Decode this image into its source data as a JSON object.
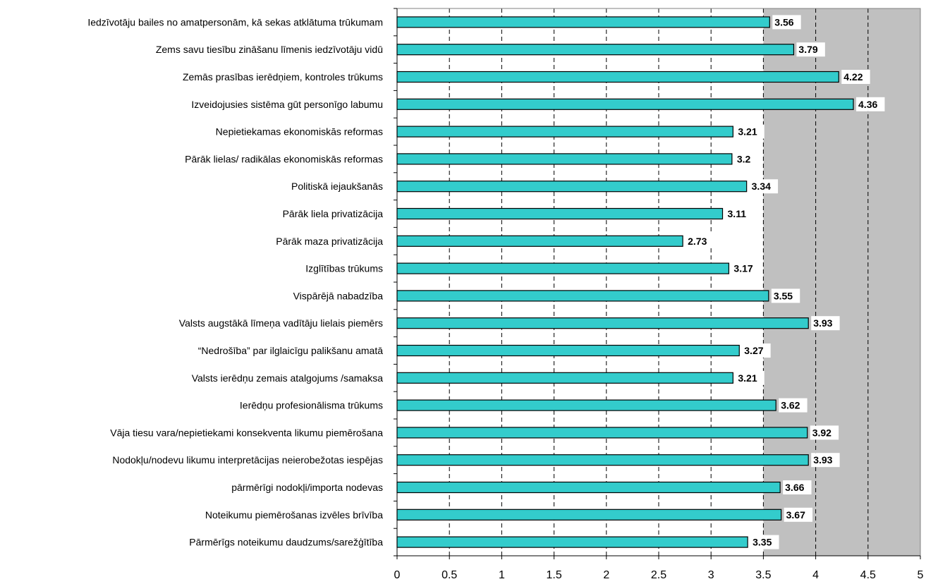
{
  "chart_data": {
    "type": "bar",
    "orientation": "horizontal",
    "title": "",
    "xlabel": "",
    "ylabel": "",
    "xlim": [
      0,
      5
    ],
    "xticks": [
      "0",
      "0.5",
      "1",
      "1.5",
      "2",
      "2.5",
      "3",
      "3.5",
      "4",
      "4.5",
      "5"
    ],
    "grid": "vertical dashed",
    "legend": "none",
    "categories": [
      "Iedzīvotāju bailes no amatpersonām, kā sekas  atklātuma trūkumam",
      "Zems savu tiesību zināšanu līmenis  iedzīvotāju vidū",
      "Zemās prasības ierēdņiem, kontroles trūkums",
      "Izveidojusies sistēma gūt personīgo labumu",
      "Nepietiekamas ekonomiskās reformas",
      "Pārāk lielas/ radikālas ekonomiskās reformas",
      "Politiskā iejaukšanās",
      "Pārāk liela privatizācija",
      "Pārāk maza privatizācija",
      "Izglītības trūkums",
      "Vispārējā nabadzība",
      "Valsts augstākā līmeņa vadītāju lielais piemērs",
      "“Nedrošība” par ilglaicīgu palikšanu amatā",
      "Valsts ierēdņu zemais atalgojums /samaksa",
      "Ierēdņu profesionālisma trūkums",
      "Vāja tiesu vara/nepietiekami konsekventa likumu piemērošana",
      "Nodokļu/nodevu likumu interpretācijas neierobežotas iespējas",
      "pārmērīgi nodokļi/importa nodevas",
      "Noteikumu piemērošanas izvēles brīvība",
      "Pārmērīgs noteikumu daudzums/sarežģītība"
    ],
    "values": [
      3.56,
      3.79,
      4.22,
      4.36,
      3.21,
      3.2,
      3.34,
      3.11,
      2.73,
      3.17,
      3.55,
      3.93,
      3.27,
      3.21,
      3.62,
      3.92,
      3.93,
      3.66,
      3.67,
      3.35
    ],
    "data_labels": [
      "3.56",
      "3.79",
      "4.22",
      "4.36",
      "3.21",
      "3.2",
      "3.34",
      "3.11",
      "2.73",
      "3.17",
      "3.55",
      "3.93",
      "3.27",
      "3.21",
      "3.62",
      "3.92",
      "3.93",
      "3.66",
      "3.67",
      "3.35"
    ],
    "colors": {
      "bar_fill": "#33CCCC",
      "bar_stroke": "#000000",
      "plot_shaded": "#C0C0C0",
      "plot_background": "#FFFFFF",
      "grid": "#000000"
    },
    "shaded_from": 3.5
  }
}
